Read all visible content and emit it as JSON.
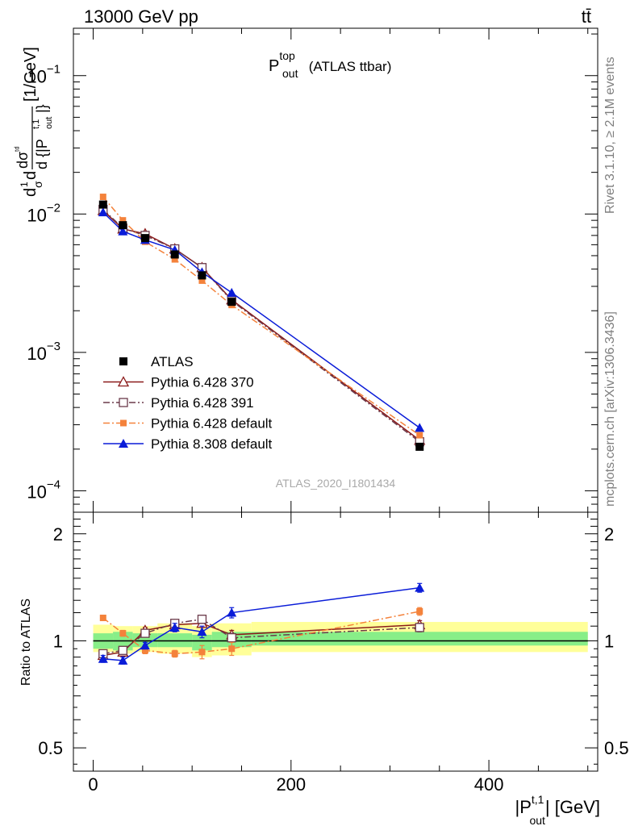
{
  "header": {
    "energy": "13000 GeV pp",
    "process": "tt̄"
  },
  "side_labels": {
    "rivet": "Rivet 3.1.10, ≥ 2.1M events",
    "mcplots": "mcplots.cern.ch [arXiv:1306.3436]"
  },
  "analysis_id": "ATLAS_2020_I1801434",
  "chart_data": [
    {
      "type": "line",
      "panel": "main",
      "title": {
        "base": "P",
        "sup": "top",
        "sub": "out",
        "suffix": " (ATLAS ttbar)"
      },
      "ylabel": "dσ/d{|P_out^t,1|} [1/GeV]",
      "ylabel_parts": {
        "d1": "d",
        "one": "1",
        "sigma": "σ",
        "d2": "d",
        "dsig": "dσ",
        "tail": "ᵗᵈ",
        "den": "d {|P",
        "den_sup": "t,1",
        "den_sub": "out",
        "den_close": "|}",
        "unit": " [1/GeV]"
      },
      "yscale": "log",
      "ylim": [
        7e-05,
        0.22
      ],
      "xlim": [
        -20,
        510
      ],
      "y_tick_labels": [
        {
          "value": 0.1,
          "mant": "10",
          "exp": "−1"
        },
        {
          "value": 0.01,
          "mant": "10",
          "exp": "−2"
        },
        {
          "value": 0.001,
          "mant": "10",
          "exp": "−3"
        },
        {
          "value": 0.0001,
          "mant": "10",
          "exp": "−4"
        }
      ],
      "legend_position": "lower-left",
      "x": [
        10,
        30,
        52.5,
        82.5,
        110,
        140,
        330
      ],
      "series": [
        {
          "name": "ATLAS",
          "color": "#000000",
          "marker": "square",
          "line": "none",
          "values": [
            0.0117,
            0.0083,
            0.0067,
            0.0051,
            0.0036,
            0.00232,
            0.000208
          ]
        },
        {
          "name": "Pythia 6.428 370",
          "color": "#8b1a1a",
          "marker": "triangle-open",
          "line": "solid",
          "values": [
            0.0106,
            0.0078,
            0.0072,
            0.0056,
            0.0041,
            0.0024,
            0.000232
          ]
        },
        {
          "name": "Pythia 6.428 391",
          "color": "#6b3a4a",
          "marker": "square-open",
          "line": "dashdot",
          "values": [
            0.0108,
            0.0079,
            0.007,
            0.0056,
            0.0041,
            0.00236,
            0.000226
          ]
        },
        {
          "name": "Pythia 6.428 default",
          "color": "#f4823b",
          "marker": "square-filled-small",
          "line": "dashdot",
          "values": [
            0.0133,
            0.009,
            0.0063,
            0.0047,
            0.0033,
            0.0022,
            0.000252
          ]
        },
        {
          "name": "Pythia 8.308 default",
          "color": "#0a1cd8",
          "marker": "triangle-filled",
          "line": "solid",
          "values": [
            0.0103,
            0.0075,
            0.0065,
            0.0055,
            0.0038,
            0.0027,
            0.000285
          ]
        }
      ]
    },
    {
      "type": "line",
      "panel": "ratio",
      "ylabel": "Ratio to ATLAS",
      "yscale": "log",
      "ylim": [
        0.43,
        2.3
      ],
      "xlim": [
        -20,
        510
      ],
      "xlabel": {
        "pre": "|P",
        "sup": "t,1",
        "sub": "out",
        "post": "| [GeV]"
      },
      "x_ticks": [
        0,
        200,
        400
      ],
      "y_ticks": [
        0.5,
        1,
        2
      ],
      "bands": {
        "bins": [
          [
            0,
            20
          ],
          [
            20,
            40
          ],
          [
            40,
            65
          ],
          [
            65,
            100
          ],
          [
            100,
            120
          ],
          [
            120,
            160
          ],
          [
            160,
            500
          ]
        ],
        "inner": [
          [
            0.95,
            1.05
          ],
          [
            0.94,
            1.06
          ],
          [
            0.96,
            1.05
          ],
          [
            0.96,
            1.05
          ],
          [
            0.94,
            1.04
          ],
          [
            0.96,
            1.06
          ],
          [
            0.97,
            1.06
          ]
        ],
        "outer": [
          [
            0.93,
            1.11
          ],
          [
            0.92,
            1.1
          ],
          [
            0.93,
            1.1
          ],
          [
            0.92,
            1.12
          ],
          [
            0.9,
            1.1
          ],
          [
            0.91,
            1.12
          ],
          [
            0.93,
            1.13
          ]
        ]
      },
      "x": [
        10,
        30,
        52.5,
        82.5,
        110,
        140,
        330
      ],
      "series": [
        {
          "name": "Pythia 6.428 370",
          "color": "#8b1a1a",
          "marker": "triangle-open",
          "line": "solid",
          "values": [
            0.91,
            0.93,
            1.07,
            1.11,
            1.12,
            1.04,
            1.11
          ],
          "errors": [
            0.02,
            0.02,
            0.02,
            0.02,
            0.03,
            0.03,
            0.03
          ]
        },
        {
          "name": "Pythia 6.428 391",
          "color": "#6b3a4a",
          "marker": "square-open",
          "line": "dashdot",
          "values": [
            0.92,
            0.94,
            1.05,
            1.12,
            1.15,
            1.02,
            1.09
          ],
          "errors": [
            0.02,
            0.02,
            0.02,
            0.02,
            0.03,
            0.03,
            0.03
          ]
        },
        {
          "name": "Pythia 6.428 default",
          "color": "#f4823b",
          "marker": "square-filled-small",
          "line": "dashdot",
          "values": [
            1.16,
            1.05,
            0.94,
            0.92,
            0.93,
            0.95,
            1.21
          ],
          "errors": [
            0.02,
            0.02,
            0.02,
            0.02,
            0.04,
            0.04,
            0.03
          ]
        },
        {
          "name": "Pythia 8.308 default",
          "color": "#0a1cd8",
          "marker": "triangle-filled",
          "line": "solid",
          "values": [
            0.89,
            0.88,
            0.97,
            1.09,
            1.06,
            1.2,
            1.41
          ],
          "errors": [
            0.02,
            0.02,
            0.02,
            0.03,
            0.04,
            0.04,
            0.04
          ]
        }
      ]
    }
  ]
}
